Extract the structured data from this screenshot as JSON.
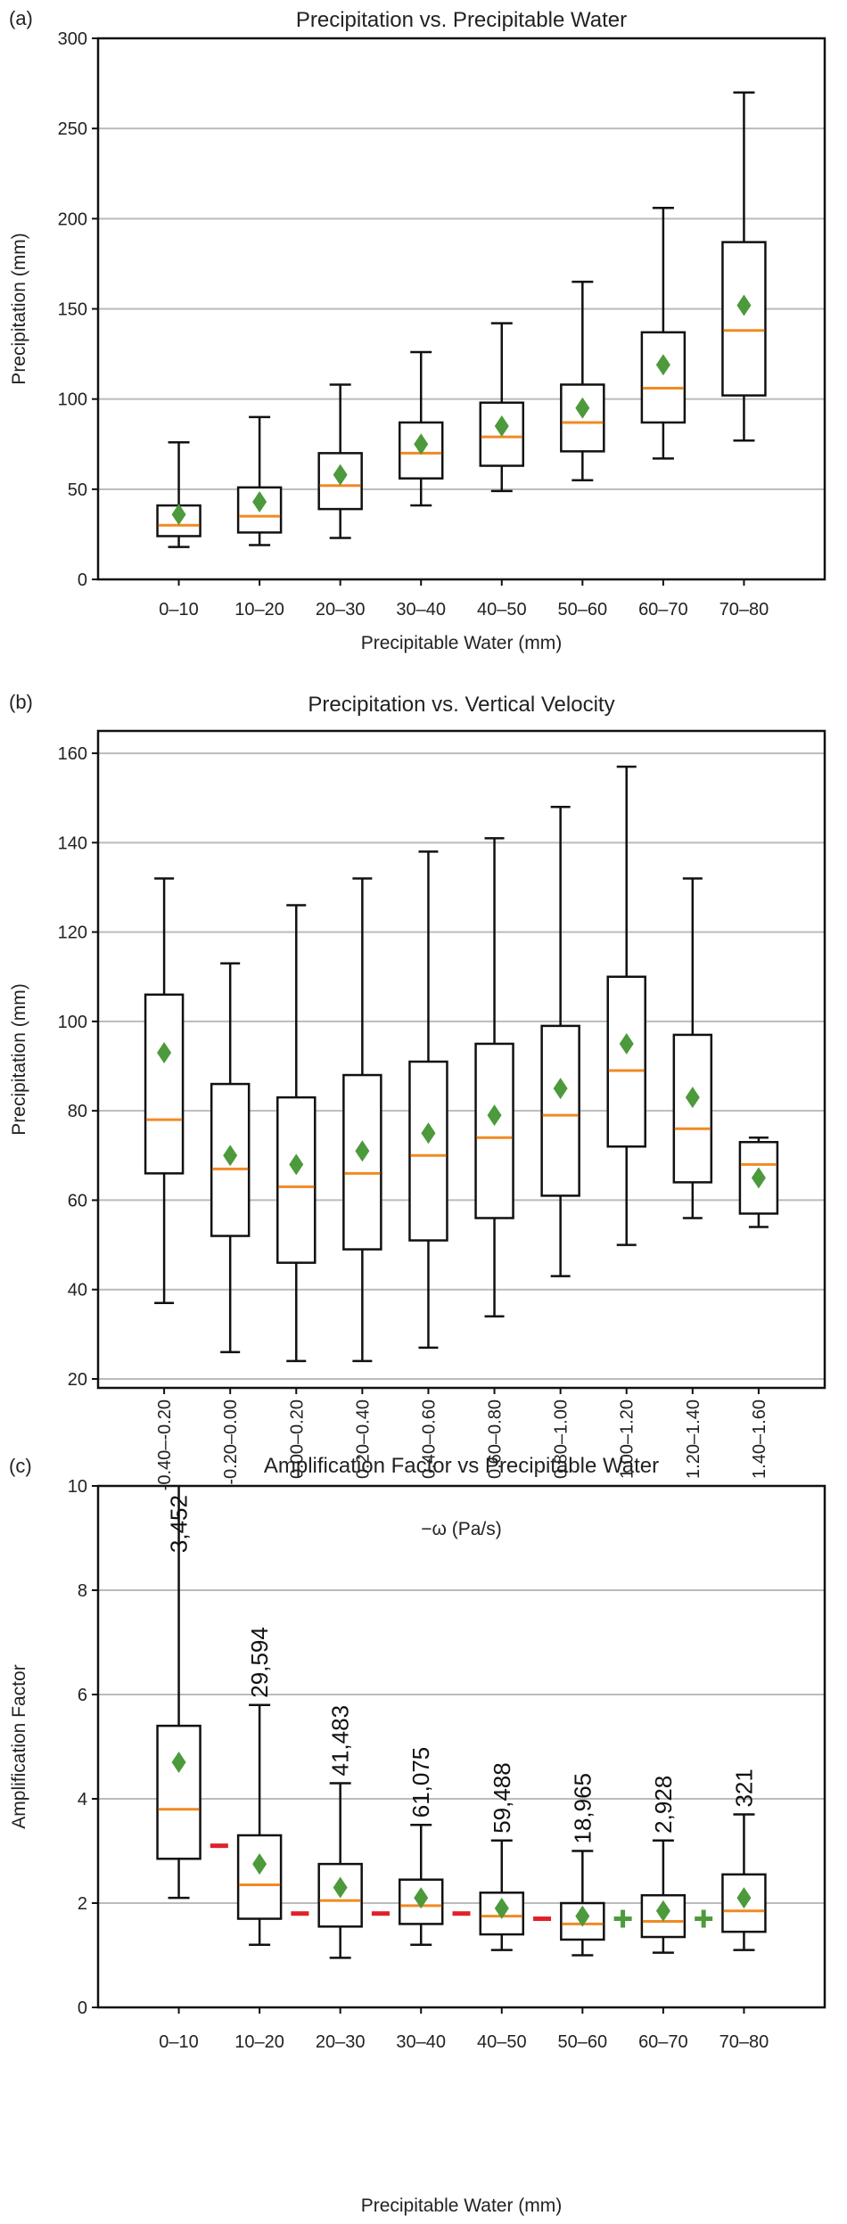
{
  "colors": {
    "median": "#f08a24",
    "mean": "#4c9a3b",
    "grid": "#bbbbbb",
    "box": "#111111",
    "minus_sign": "#e0202a",
    "plus_sign": "#4c9a3b"
  },
  "chart_data": [
    {
      "type": "box",
      "panel_label": "(a)",
      "title": "Precipitation vs. Precipitable Water",
      "xlabel": "Precipitable Water (mm)",
      "ylabel": "Precipitation (mm)",
      "ylim": [
        0,
        300
      ],
      "yticks": [
        "0",
        "50",
        "100",
        "150",
        "200",
        "250",
        "300"
      ],
      "grid": "horizontal",
      "categories": [
        "0–10",
        "10–20",
        "20–30",
        "30–40",
        "40–50",
        "50–60",
        "60–70",
        "70–80"
      ],
      "boxes": [
        {
          "whislo": 18,
          "q1": 24,
          "med": 30,
          "q3": 41,
          "whishi": 76,
          "mean": 36
        },
        {
          "whislo": 19,
          "q1": 26,
          "med": 35,
          "q3": 51,
          "whishi": 90,
          "mean": 43
        },
        {
          "whislo": 23,
          "q1": 39,
          "med": 52,
          "q3": 70,
          "whishi": 108,
          "mean": 58
        },
        {
          "whislo": 41,
          "q1": 56,
          "med": 70,
          "q3": 87,
          "whishi": 126,
          "mean": 75
        },
        {
          "whislo": 49,
          "q1": 63,
          "med": 79,
          "q3": 98,
          "whishi": 142,
          "mean": 85
        },
        {
          "whislo": 55,
          "q1": 71,
          "med": 87,
          "q3": 108,
          "whishi": 165,
          "mean": 95
        },
        {
          "whislo": 67,
          "q1": 87,
          "med": 106,
          "q3": 137,
          "whishi": 206,
          "mean": 119
        },
        {
          "whislo": 77,
          "q1": 102,
          "med": 138,
          "q3": 187,
          "whishi": 270,
          "mean": 152
        }
      ]
    },
    {
      "type": "box",
      "panel_label": "(b)",
      "title": "Precipitation vs. Vertical Velocity",
      "xlabel": "−ω (Pa/s)",
      "ylabel": "Precipitation (mm)",
      "ylim": [
        18,
        165
      ],
      "yticks": [
        "20",
        "40",
        "60",
        "80",
        "100",
        "120",
        "140",
        "160"
      ],
      "ytick_values": [
        20,
        40,
        60,
        80,
        100,
        120,
        140,
        160
      ],
      "grid": "horizontal",
      "categories": [
        "-0.40–-0.20",
        "-0.20–0.00",
        "0.00–0.20",
        "0.20–0.40",
        "0.40–0.60",
        "0.60–0.80",
        "0.80–1.00",
        "1.00–1.20",
        "1.20–1.40",
        "1.40–1.60"
      ],
      "boxes": [
        {
          "whislo": 37,
          "q1": 66,
          "med": 78,
          "q3": 106,
          "whishi": 132,
          "mean": 93
        },
        {
          "whislo": 26,
          "q1": 52,
          "med": 67,
          "q3": 86,
          "whishi": 113,
          "mean": 70
        },
        {
          "whislo": 24,
          "q1": 46,
          "med": 63,
          "q3": 83,
          "whishi": 126,
          "mean": 68
        },
        {
          "whislo": 24,
          "q1": 49,
          "med": 66,
          "q3": 88,
          "whishi": 132,
          "mean": 71
        },
        {
          "whislo": 27,
          "q1": 51,
          "med": 70,
          "q3": 91,
          "whishi": 138,
          "mean": 75
        },
        {
          "whislo": 34,
          "q1": 56,
          "med": 74,
          "q3": 95,
          "whishi": 141,
          "mean": 79
        },
        {
          "whislo": 43,
          "q1": 61,
          "med": 79,
          "q3": 99,
          "whishi": 148,
          "mean": 85
        },
        {
          "whislo": 50,
          "q1": 72,
          "med": 89,
          "q3": 110,
          "whishi": 157,
          "mean": 95
        },
        {
          "whislo": 56,
          "q1": 64,
          "med": 76,
          "q3": 97,
          "whishi": 132,
          "mean": 83
        },
        {
          "whislo": 54,
          "q1": 57,
          "med": 68,
          "q3": 73,
          "whishi": 74,
          "mean": 65
        }
      ]
    },
    {
      "type": "box",
      "panel_label": "(c)",
      "title": "Amplification Factor vs Precipitable Water",
      "xlabel": "Precipitable Water (mm)",
      "ylabel": "Amplification Factor",
      "ylim": [
        0,
        10
      ],
      "yticks": [
        "0",
        "2",
        "4",
        "6",
        "8",
        "10"
      ],
      "grid": "horizontal",
      "categories": [
        "0–10",
        "10–20",
        "20–30",
        "30–40",
        "40–50",
        "50–60",
        "60–70",
        "70–80"
      ],
      "counts": [
        "3,452",
        "29,594",
        "41,483",
        "61,075",
        "59,488",
        "18,965",
        "2,928",
        "321"
      ],
      "boxes": [
        {
          "whislo": 2.1,
          "q1": 2.85,
          "med": 3.8,
          "q3": 5.4,
          "whishi": 10.0,
          "mean": 4.7
        },
        {
          "whislo": 1.2,
          "q1": 1.7,
          "med": 2.35,
          "q3": 3.3,
          "whishi": 5.8,
          "mean": 2.75
        },
        {
          "whislo": 0.95,
          "q1": 1.55,
          "med": 2.05,
          "q3": 2.75,
          "whishi": 4.3,
          "mean": 2.3
        },
        {
          "whislo": 1.2,
          "q1": 1.6,
          "med": 1.95,
          "q3": 2.45,
          "whishi": 3.5,
          "mean": 2.1
        },
        {
          "whislo": 1.1,
          "q1": 1.4,
          "med": 1.75,
          "q3": 2.2,
          "whishi": 3.2,
          "mean": 1.9
        },
        {
          "whislo": 1.0,
          "q1": 1.3,
          "med": 1.6,
          "q3": 2.0,
          "whishi": 3.0,
          "mean": 1.75
        },
        {
          "whislo": 1.05,
          "q1": 1.35,
          "med": 1.65,
          "q3": 2.15,
          "whishi": 3.2,
          "mean": 1.85
        },
        {
          "whislo": 1.1,
          "q1": 1.45,
          "med": 1.85,
          "q3": 2.55,
          "whishi": 3.7,
          "mean": 2.1
        }
      ],
      "sign_markers": [
        {
          "between": [
            1,
            2
          ],
          "sign": "−",
          "y": 3.1
        },
        {
          "between": [
            2,
            3
          ],
          "sign": "−",
          "y": 1.8
        },
        {
          "between": [
            3,
            4
          ],
          "sign": "−",
          "y": 1.8
        },
        {
          "between": [
            4,
            5
          ],
          "sign": "−",
          "y": 1.8
        },
        {
          "between": [
            5,
            6
          ],
          "sign": "−",
          "y": 1.7
        },
        {
          "between": [
            6,
            7
          ],
          "sign": "+",
          "y": 1.7
        },
        {
          "between": [
            7,
            8
          ],
          "sign": "+",
          "y": 1.7
        }
      ]
    }
  ]
}
